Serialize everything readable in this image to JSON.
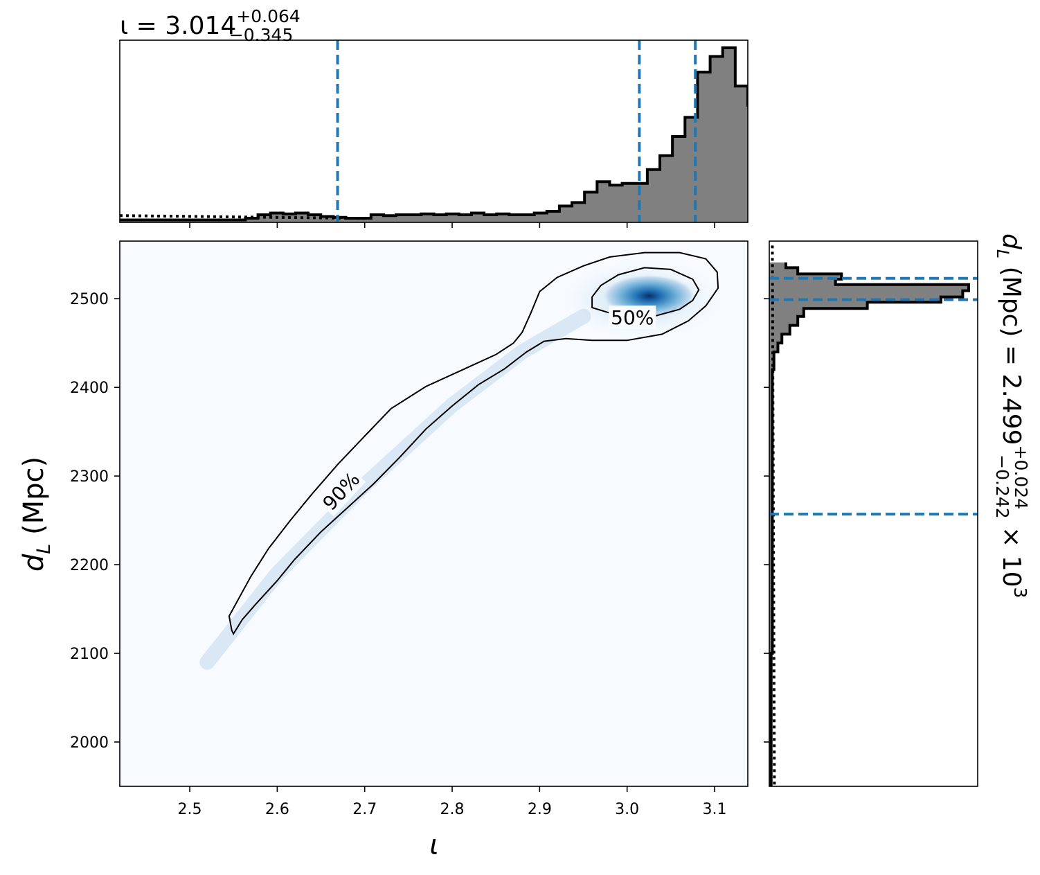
{
  "chart_data": [
    {
      "type": "histogram",
      "panel": "top marginal",
      "parameter": "ι",
      "title": {
        "main": "ι = 3.014",
        "sup": "+0.064",
        "sub": "−0.345"
      },
      "xlim": [
        2.42,
        3.138
      ],
      "ylim": [
        0,
        1.0
      ],
      "bin_edges_start": 2.42,
      "bin_width": 0.01436,
      "counts": [
        0.01,
        0.01,
        0.01,
        0.01,
        0.01,
        0.01,
        0.01,
        0.01,
        0.01,
        0.01,
        0.02,
        0.04,
        0.05,
        0.045,
        0.05,
        0.04,
        0.03,
        0.025,
        0.02,
        0.02,
        0.04,
        0.035,
        0.04,
        0.04,
        0.045,
        0.04,
        0.045,
        0.04,
        0.05,
        0.04,
        0.045,
        0.04,
        0.04,
        0.05,
        0.06,
        0.09,
        0.11,
        0.17,
        0.23,
        0.21,
        0.22,
        0.22,
        0.3,
        0.38,
        0.49,
        0.6,
        0.86,
        0.95,
        1.0,
        0.78,
        0.67,
        0.47,
        0.26,
        0.09,
        0.06,
        0.02,
        0.0
      ],
      "prior_dotted_level": 0.035,
      "credible_lines": [
        2.669,
        3.014,
        3.078
      ]
    },
    {
      "type": "contour_density",
      "panel": "joint",
      "xlabel": "ι",
      "ylabel": "d_L (Mpc)",
      "xlim": [
        2.42,
        3.138
      ],
      "ylim": [
        1950,
        2565
      ],
      "xticks": [
        "2.5",
        "2.6",
        "2.7",
        "2.8",
        "2.9",
        "3.0",
        "3.1"
      ],
      "xtick_values": [
        2.5,
        2.6,
        2.7,
        2.8,
        2.9,
        3.0,
        3.1
      ],
      "yticks": [
        "2000",
        "2100",
        "2200",
        "2300",
        "2400",
        "2500"
      ],
      "ytick_values": [
        2000,
        2100,
        2200,
        2300,
        2400,
        2500
      ],
      "contour_labels": [
        "90%",
        "50%"
      ],
      "contour_label_positions": [
        {
          "label": "90%",
          "x": 2.673,
          "y": 2283,
          "angle": -47
        },
        {
          "label": "50%",
          "x": 3.006,
          "y": 2479,
          "angle": 0
        }
      ],
      "contour_90": [
        [
          2.55,
          2122
        ],
        [
          2.56,
          2138
        ],
        [
          2.575,
          2155
        ],
        [
          2.6,
          2182
        ],
        [
          2.62,
          2206
        ],
        [
          2.65,
          2237
        ],
        [
          2.68,
          2264
        ],
        [
          2.71,
          2291
        ],
        [
          2.74,
          2321
        ],
        [
          2.77,
          2353
        ],
        [
          2.8,
          2379
        ],
        [
          2.83,
          2403
        ],
        [
          2.86,
          2421
        ],
        [
          2.885,
          2440
        ],
        [
          2.905,
          2452
        ],
        [
          2.93,
          2455
        ],
        [
          2.96,
          2453
        ],
        [
          3.0,
          2453
        ],
        [
          3.04,
          2460
        ],
        [
          3.07,
          2475
        ],
        [
          3.09,
          2492
        ],
        [
          3.104,
          2512
        ],
        [
          3.103,
          2530
        ],
        [
          3.09,
          2545
        ],
        [
          3.06,
          2552
        ],
        [
          3.02,
          2552
        ],
        [
          2.98,
          2547
        ],
        [
          2.95,
          2537
        ],
        [
          2.92,
          2524
        ],
        [
          2.9,
          2508
        ],
        [
          2.89,
          2484
        ],
        [
          2.88,
          2462
        ],
        [
          2.87,
          2450
        ],
        [
          2.85,
          2437
        ],
        [
          2.81,
          2419
        ],
        [
          2.77,
          2401
        ],
        [
          2.73,
          2376
        ],
        [
          2.7,
          2345
        ],
        [
          2.67,
          2314
        ],
        [
          2.64,
          2280
        ],
        [
          2.615,
          2250
        ],
        [
          2.59,
          2218
        ],
        [
          2.57,
          2187
        ],
        [
          2.555,
          2160
        ],
        [
          2.545,
          2142
        ],
        [
          2.548,
          2126
        ],
        [
          2.55,
          2122
        ]
      ],
      "contour_50": [
        [
          2.96,
          2490
        ],
        [
          2.98,
          2484
        ],
        [
          3.0,
          2479
        ],
        [
          3.03,
          2480
        ],
        [
          3.06,
          2488
        ],
        [
          3.075,
          2498
        ],
        [
          3.082,
          2510
        ],
        [
          3.075,
          2522
        ],
        [
          3.05,
          2533
        ],
        [
          3.02,
          2535
        ],
        [
          2.99,
          2527
        ],
        [
          2.97,
          2515
        ],
        [
          2.96,
          2502
        ],
        [
          2.96,
          2490
        ]
      ],
      "density_peak": {
        "x": 3.025,
        "y": 2503
      },
      "colormap": [
        "#f7fbff",
        "#deebf7",
        "#9ecae1",
        "#4292c6",
        "#2171b5",
        "#08306b"
      ]
    },
    {
      "type": "histogram",
      "panel": "right marginal",
      "orientation": "horizontal",
      "parameter": "d_L",
      "label": {
        "main": "d_L (Mpc) = 2.499",
        "sup": "+0.024",
        "sub": "−0.242",
        "suffix": " × 10³"
      },
      "ylim": [
        1950,
        2565
      ],
      "bins": [
        {
          "lo": 2535,
          "hi": 2541,
          "v": 0.08
        },
        {
          "lo": 2528,
          "hi": 2535,
          "v": 0.14
        },
        {
          "lo": 2522,
          "hi": 2528,
          "v": 0.36
        },
        {
          "lo": 2516,
          "hi": 2522,
          "v": 0.33
        },
        {
          "lo": 2509,
          "hi": 2516,
          "v": 1.0
        },
        {
          "lo": 2502,
          "hi": 2509,
          "v": 0.97
        },
        {
          "lo": 2496,
          "hi": 2502,
          "v": 0.86
        },
        {
          "lo": 2489,
          "hi": 2496,
          "v": 0.49
        },
        {
          "lo": 2480,
          "hi": 2489,
          "v": 0.17
        },
        {
          "lo": 2470,
          "hi": 2480,
          "v": 0.14
        },
        {
          "lo": 2460,
          "hi": 2470,
          "v": 0.1
        },
        {
          "lo": 2450,
          "hi": 2460,
          "v": 0.06
        },
        {
          "lo": 2440,
          "hi": 2450,
          "v": 0.04
        },
        {
          "lo": 2420,
          "hi": 2440,
          "v": 0.02
        },
        {
          "lo": 2100,
          "hi": 2420,
          "v": 0.012
        },
        {
          "lo": 1950,
          "hi": 2100,
          "v": 0.006
        }
      ],
      "prior_dotted_level": 0.012,
      "credible_lines": [
        2257,
        2499,
        2523
      ]
    }
  ],
  "colors": {
    "hist_fill": "#808080",
    "credible_line": "#1f77b4",
    "contour": "#000000"
  }
}
